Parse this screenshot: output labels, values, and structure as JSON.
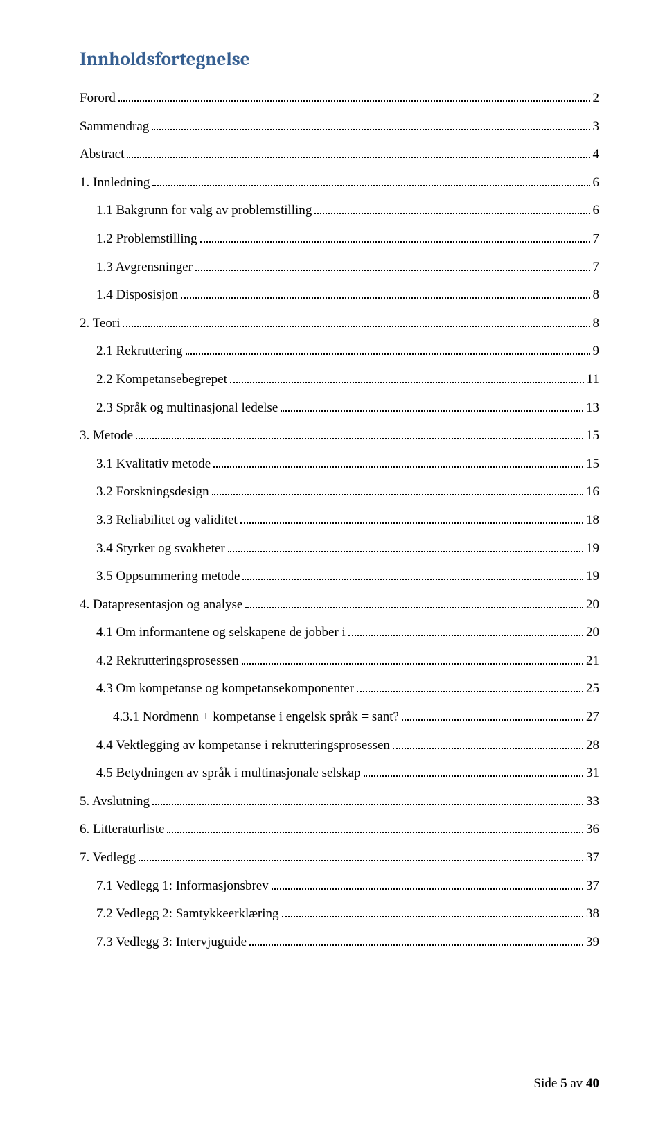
{
  "title": "Innholdsfortegnelse",
  "entries": [
    {
      "label": "Forord",
      "page": "2",
      "indent": 0
    },
    {
      "label": "Sammendrag",
      "page": "3",
      "indent": 0
    },
    {
      "label": "Abstract",
      "page": "4",
      "indent": 0
    },
    {
      "label": "1. Innledning",
      "page": "6",
      "indent": 0
    },
    {
      "label": "1.1 Bakgrunn for valg av problemstilling",
      "page": "6",
      "indent": 1
    },
    {
      "label": "1.2 Problemstilling",
      "page": "7",
      "indent": 1
    },
    {
      "label": "1.3 Avgrensninger",
      "page": "7",
      "indent": 1
    },
    {
      "label": "1.4 Disposisjon",
      "page": "8",
      "indent": 1
    },
    {
      "label": "2. Teori",
      "page": "8",
      "indent": 0
    },
    {
      "label": "2.1 Rekruttering",
      "page": "9",
      "indent": 1
    },
    {
      "label": "2.2 Kompetansebegrepet",
      "page": "11",
      "indent": 1
    },
    {
      "label": "2.3 Språk og multinasjonal ledelse",
      "page": "13",
      "indent": 1
    },
    {
      "label": "3. Metode",
      "page": "15",
      "indent": 0
    },
    {
      "label": "3.1 Kvalitativ metode",
      "page": "15",
      "indent": 1
    },
    {
      "label": "3.2 Forskningsdesign",
      "page": "16",
      "indent": 1
    },
    {
      "label": "3.3 Reliabilitet og validitet",
      "page": "18",
      "indent": 1
    },
    {
      "label": "3.4 Styrker og svakheter",
      "page": "19",
      "indent": 1
    },
    {
      "label": "3.5 Oppsummering metode",
      "page": "19",
      "indent": 1
    },
    {
      "label": "4. Datapresentasjon og analyse",
      "page": "20",
      "indent": 0
    },
    {
      "label": "4.1 Om informantene og selskapene de jobber i",
      "page": "20",
      "indent": 1
    },
    {
      "label": "4.2 Rekrutteringsprosessen",
      "page": "21",
      "indent": 1
    },
    {
      "label": "4.3 Om kompetanse og kompetansekomponenter",
      "page": "25",
      "indent": 1
    },
    {
      "label": "4.3.1 Nordmenn + kompetanse i engelsk språk = sant?",
      "page": "27",
      "indent": 2
    },
    {
      "label": "4.4 Vektlegging av kompetanse i rekrutteringsprosessen",
      "page": "28",
      "indent": 1
    },
    {
      "label": "4.5 Betydningen av språk i multinasjonale selskap",
      "page": "31",
      "indent": 1
    },
    {
      "label": "5. Avslutning",
      "page": "33",
      "indent": 0
    },
    {
      "label": "6. Litteraturliste",
      "page": "36",
      "indent": 0
    },
    {
      "label": "7. Vedlegg",
      "page": "37",
      "indent": 0
    },
    {
      "label": "7.1 Vedlegg 1: Informasjonsbrev",
      "page": "37",
      "indent": 1
    },
    {
      "label": "7.2 Vedlegg 2: Samtykkeerklæring",
      "page": "38",
      "indent": 1
    },
    {
      "label": "7.3 Vedlegg 3: Intervjuguide",
      "page": "39",
      "indent": 1
    }
  ],
  "footer": {
    "prefix": "Side ",
    "current": "5",
    "middle": " av ",
    "total": "40"
  },
  "colors": {
    "title_color": "#365f91",
    "text_color": "#000000",
    "background": "#ffffff"
  },
  "typography": {
    "title_font": "Cambria",
    "title_size_pt": 20,
    "body_font": "Times New Roman",
    "body_size_pt": 14
  }
}
